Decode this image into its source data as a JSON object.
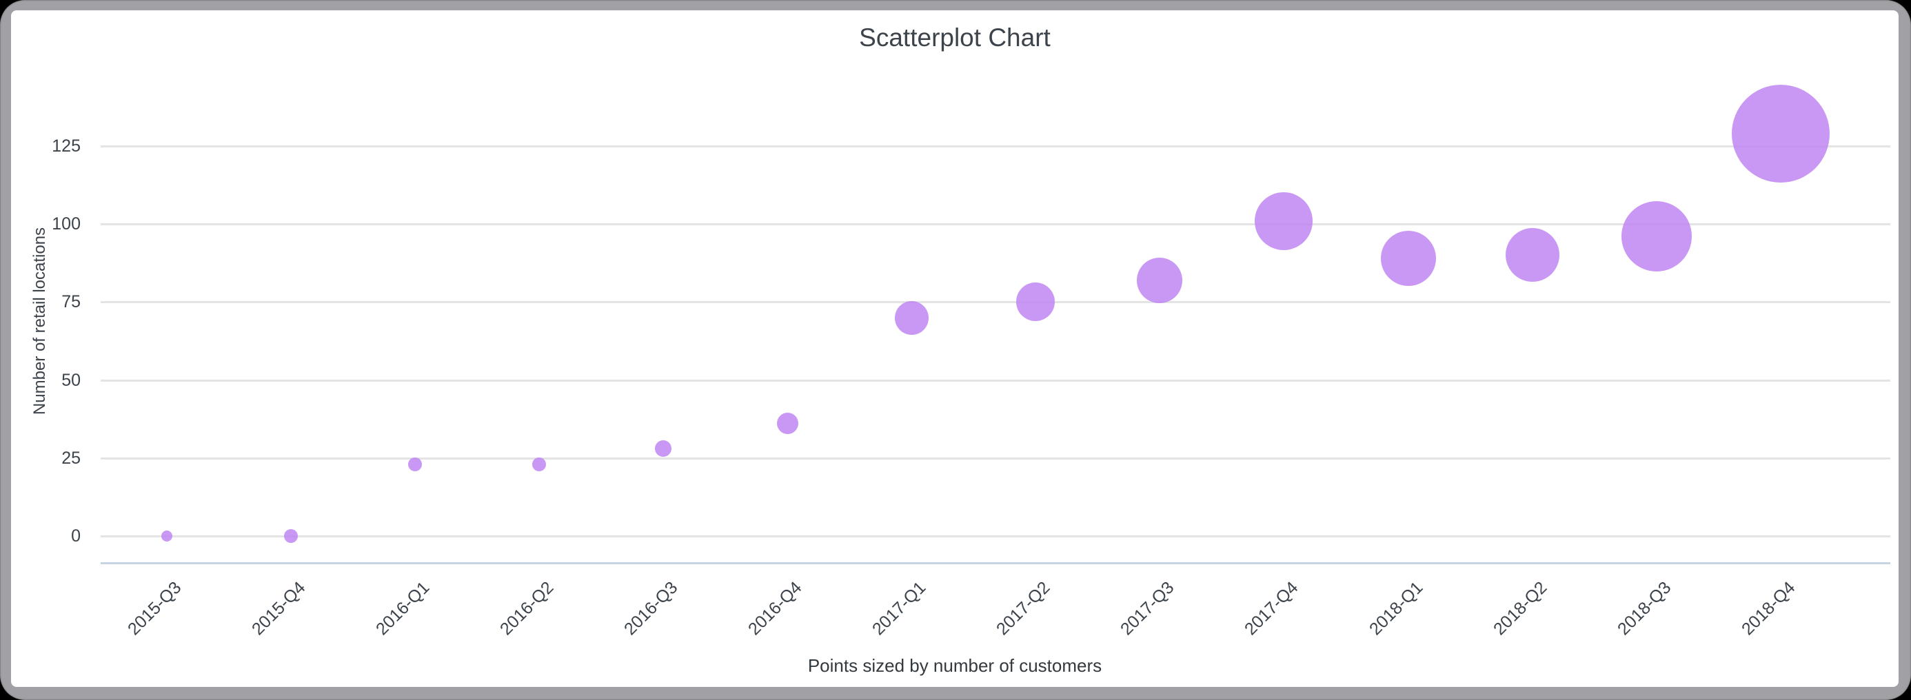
{
  "window": {
    "background_color": "#000000",
    "frame_color": "#a1a1a5",
    "card_color": "#ffffff"
  },
  "chart_data": {
    "type": "scatter",
    "title": "Scatterplot Chart",
    "xlabel": "",
    "ylabel": "Number of retail locations",
    "caption": "Points sized by number of customers",
    "categories": [
      "2015-Q3",
      "2015-Q4",
      "2016-Q1",
      "2016-Q2",
      "2016-Q3",
      "2016-Q4",
      "2017-Q1",
      "2017-Q2",
      "2017-Q3",
      "2017-Q4",
      "2018-Q1",
      "2018-Q2",
      "2018-Q3",
      "2018-Q4"
    ],
    "series": [
      {
        "name": "Number of retail locations",
        "values": [
          0,
          0,
          23,
          23,
          28,
          36,
          70,
          75,
          82,
          101,
          89,
          90,
          96,
          129
        ]
      }
    ],
    "point_radius_px": [
      8,
      10,
      10,
      10,
      12,
      15.5,
      24.5,
      28,
      33,
      42,
      40,
      39,
      51,
      71
    ],
    "y_ticks": [
      0,
      25,
      50,
      75,
      100,
      125
    ],
    "ylim": [
      0,
      138
    ],
    "grid": true,
    "legend": "none",
    "x_tick_rotation_deg": -45,
    "colors": {
      "point": "#c085f2",
      "point_opacity": 0.85,
      "grid": "#e4e4e4",
      "axis_line": "#c6d3e3",
      "text": "#3c434b"
    }
  }
}
